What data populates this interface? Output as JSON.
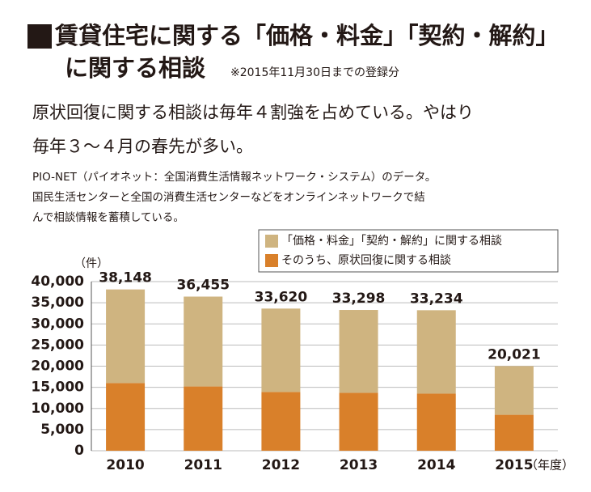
{
  "header": {
    "title_line1": "賃貸住宅に関する「価格・料金」「契約・解約」",
    "title_line2": "に関する相談",
    "note": "※2015年11月30日までの登録分",
    "lead": [
      "原状回復に関する相談は毎年４割強を占めている。やはり",
      "毎年３～４月の春先が多い。"
    ],
    "description": [
      "PIO-NET（パイオネット：全国消費生活情報ネットワーク・システム）のデータ。",
      "国民生活センターと全国の消費生活センターなどをオンラインネットワークで結",
      "んで相談情報を蓄積している。"
    ]
  },
  "chart_data": {
    "type": "stacked_bar",
    "y_unit": "（件）",
    "x_unit": "（年度）",
    "categories": [
      "2010",
      "2011",
      "2012",
      "2013",
      "2014",
      "2015"
    ],
    "series": [
      {
        "name": "そのうち、原状回復に関する相談",
        "color": "#d9802a",
        "values": [
          16000,
          15200,
          13900,
          13700,
          13500,
          8500
        ]
      },
      {
        "name": "「価格・料金」「契約・解約」に関する相談",
        "color": "#cfb480",
        "values": [
          22148,
          21255,
          19720,
          19598,
          19734,
          11521
        ]
      }
    ],
    "totals": [
      38148,
      36455,
      33620,
      33298,
      33234,
      20021
    ],
    "total_labels": [
      "38,148",
      "36,455",
      "33,620",
      "33,298",
      "33,234",
      "20,021"
    ],
    "ylim": [
      0,
      40000
    ],
    "yticks": [
      0,
      {
        "value": 5000,
        "label": "5,000"
      },
      {
        "value": 10000,
        "label": "10,000"
      },
      {
        "value": 15000,
        "label": "15,000"
      },
      {
        "value": 20000,
        "label": "20,000"
      },
      {
        "value": 25000,
        "label": "25,000"
      },
      {
        "value": 30000,
        "label": "30,000"
      },
      {
        "value": 35000,
        "label": "35,000"
      },
      {
        "value": 40000,
        "label": "40,000"
      }
    ],
    "grid": true
  }
}
